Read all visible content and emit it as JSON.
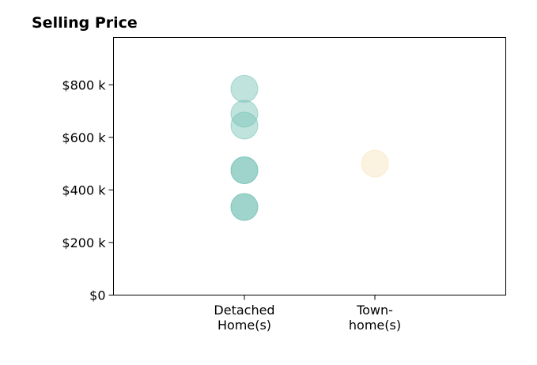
{
  "chart_data": {
    "type": "scatter",
    "title": "Selling Price",
    "xlabel": "",
    "ylabel": "",
    "categories": [
      [
        "Detached",
        "Home(s)"
      ],
      [
        "Town-",
        "home(s)"
      ]
    ],
    "ylim": [
      0,
      980000
    ],
    "yticks": [
      {
        "value": 0,
        "label": "$0"
      },
      {
        "value": 200000,
        "label": "$200 k"
      },
      {
        "value": 400000,
        "label": "$400 k"
      },
      {
        "value": 600000,
        "label": "$600 k"
      },
      {
        "value": 800000,
        "label": "$800 k"
      }
    ],
    "grid": false,
    "series": [
      {
        "category": 0,
        "color": "#76c1b6",
        "points": [
          785000,
          690000,
          645000,
          475000,
          475000,
          335000,
          335000
        ]
      },
      {
        "category": 1,
        "color": "#f6e2bb",
        "points": [
          500000
        ]
      }
    ]
  }
}
